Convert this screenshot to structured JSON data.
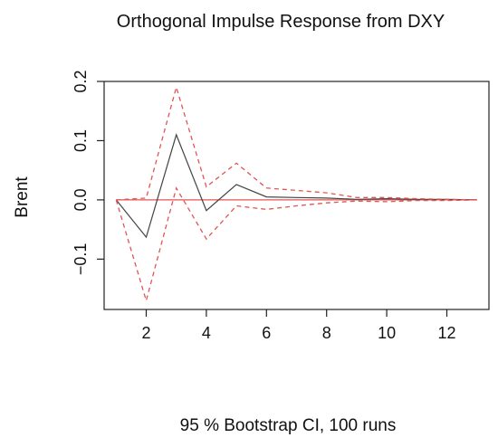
{
  "chart_data": {
    "type": "line",
    "title": "Orthogonal Impulse Response from DXY",
    "xlabel": "95 % Bootstrap CI,  100 runs",
    "ylabel": "Brent",
    "xlim": [
      0.6,
      13.4
    ],
    "ylim": [
      -0.185,
      0.2
    ],
    "x_ticks": [
      2,
      4,
      6,
      8,
      10,
      12
    ],
    "y_ticks": [
      -0.1,
      0.0,
      0.1,
      0.2
    ],
    "y_tick_labels": [
      "−0.1",
      "0.0",
      "0.1",
      "0.2"
    ],
    "x": [
      1,
      2,
      3,
      4,
      5,
      6,
      7,
      8,
      9,
      10,
      11,
      12,
      13
    ],
    "series": [
      {
        "role": "response",
        "color": "#444444",
        "style": "solid",
        "values": [
          0.0,
          -0.063,
          0.11,
          -0.018,
          0.026,
          0.005,
          0.004,
          0.003,
          0.001,
          0.002,
          0.001,
          0.001,
          0.0
        ]
      },
      {
        "role": "upper",
        "color": "#e05555",
        "style": "dashed",
        "values": [
          0.0,
          0.003,
          0.19,
          0.022,
          0.062,
          0.02,
          0.016,
          0.012,
          0.004,
          0.004,
          0.002,
          0.001,
          0.0
        ]
      },
      {
        "role": "lower",
        "color": "#e05555",
        "style": "dashed",
        "values": [
          0.0,
          -0.17,
          0.02,
          -0.066,
          -0.01,
          -0.016,
          -0.01,
          -0.005,
          -0.002,
          -0.003,
          -0.001,
          -0.001,
          0.0
        ]
      }
    ],
    "reference_line": {
      "y": 0.0,
      "color": "#e05555"
    }
  }
}
